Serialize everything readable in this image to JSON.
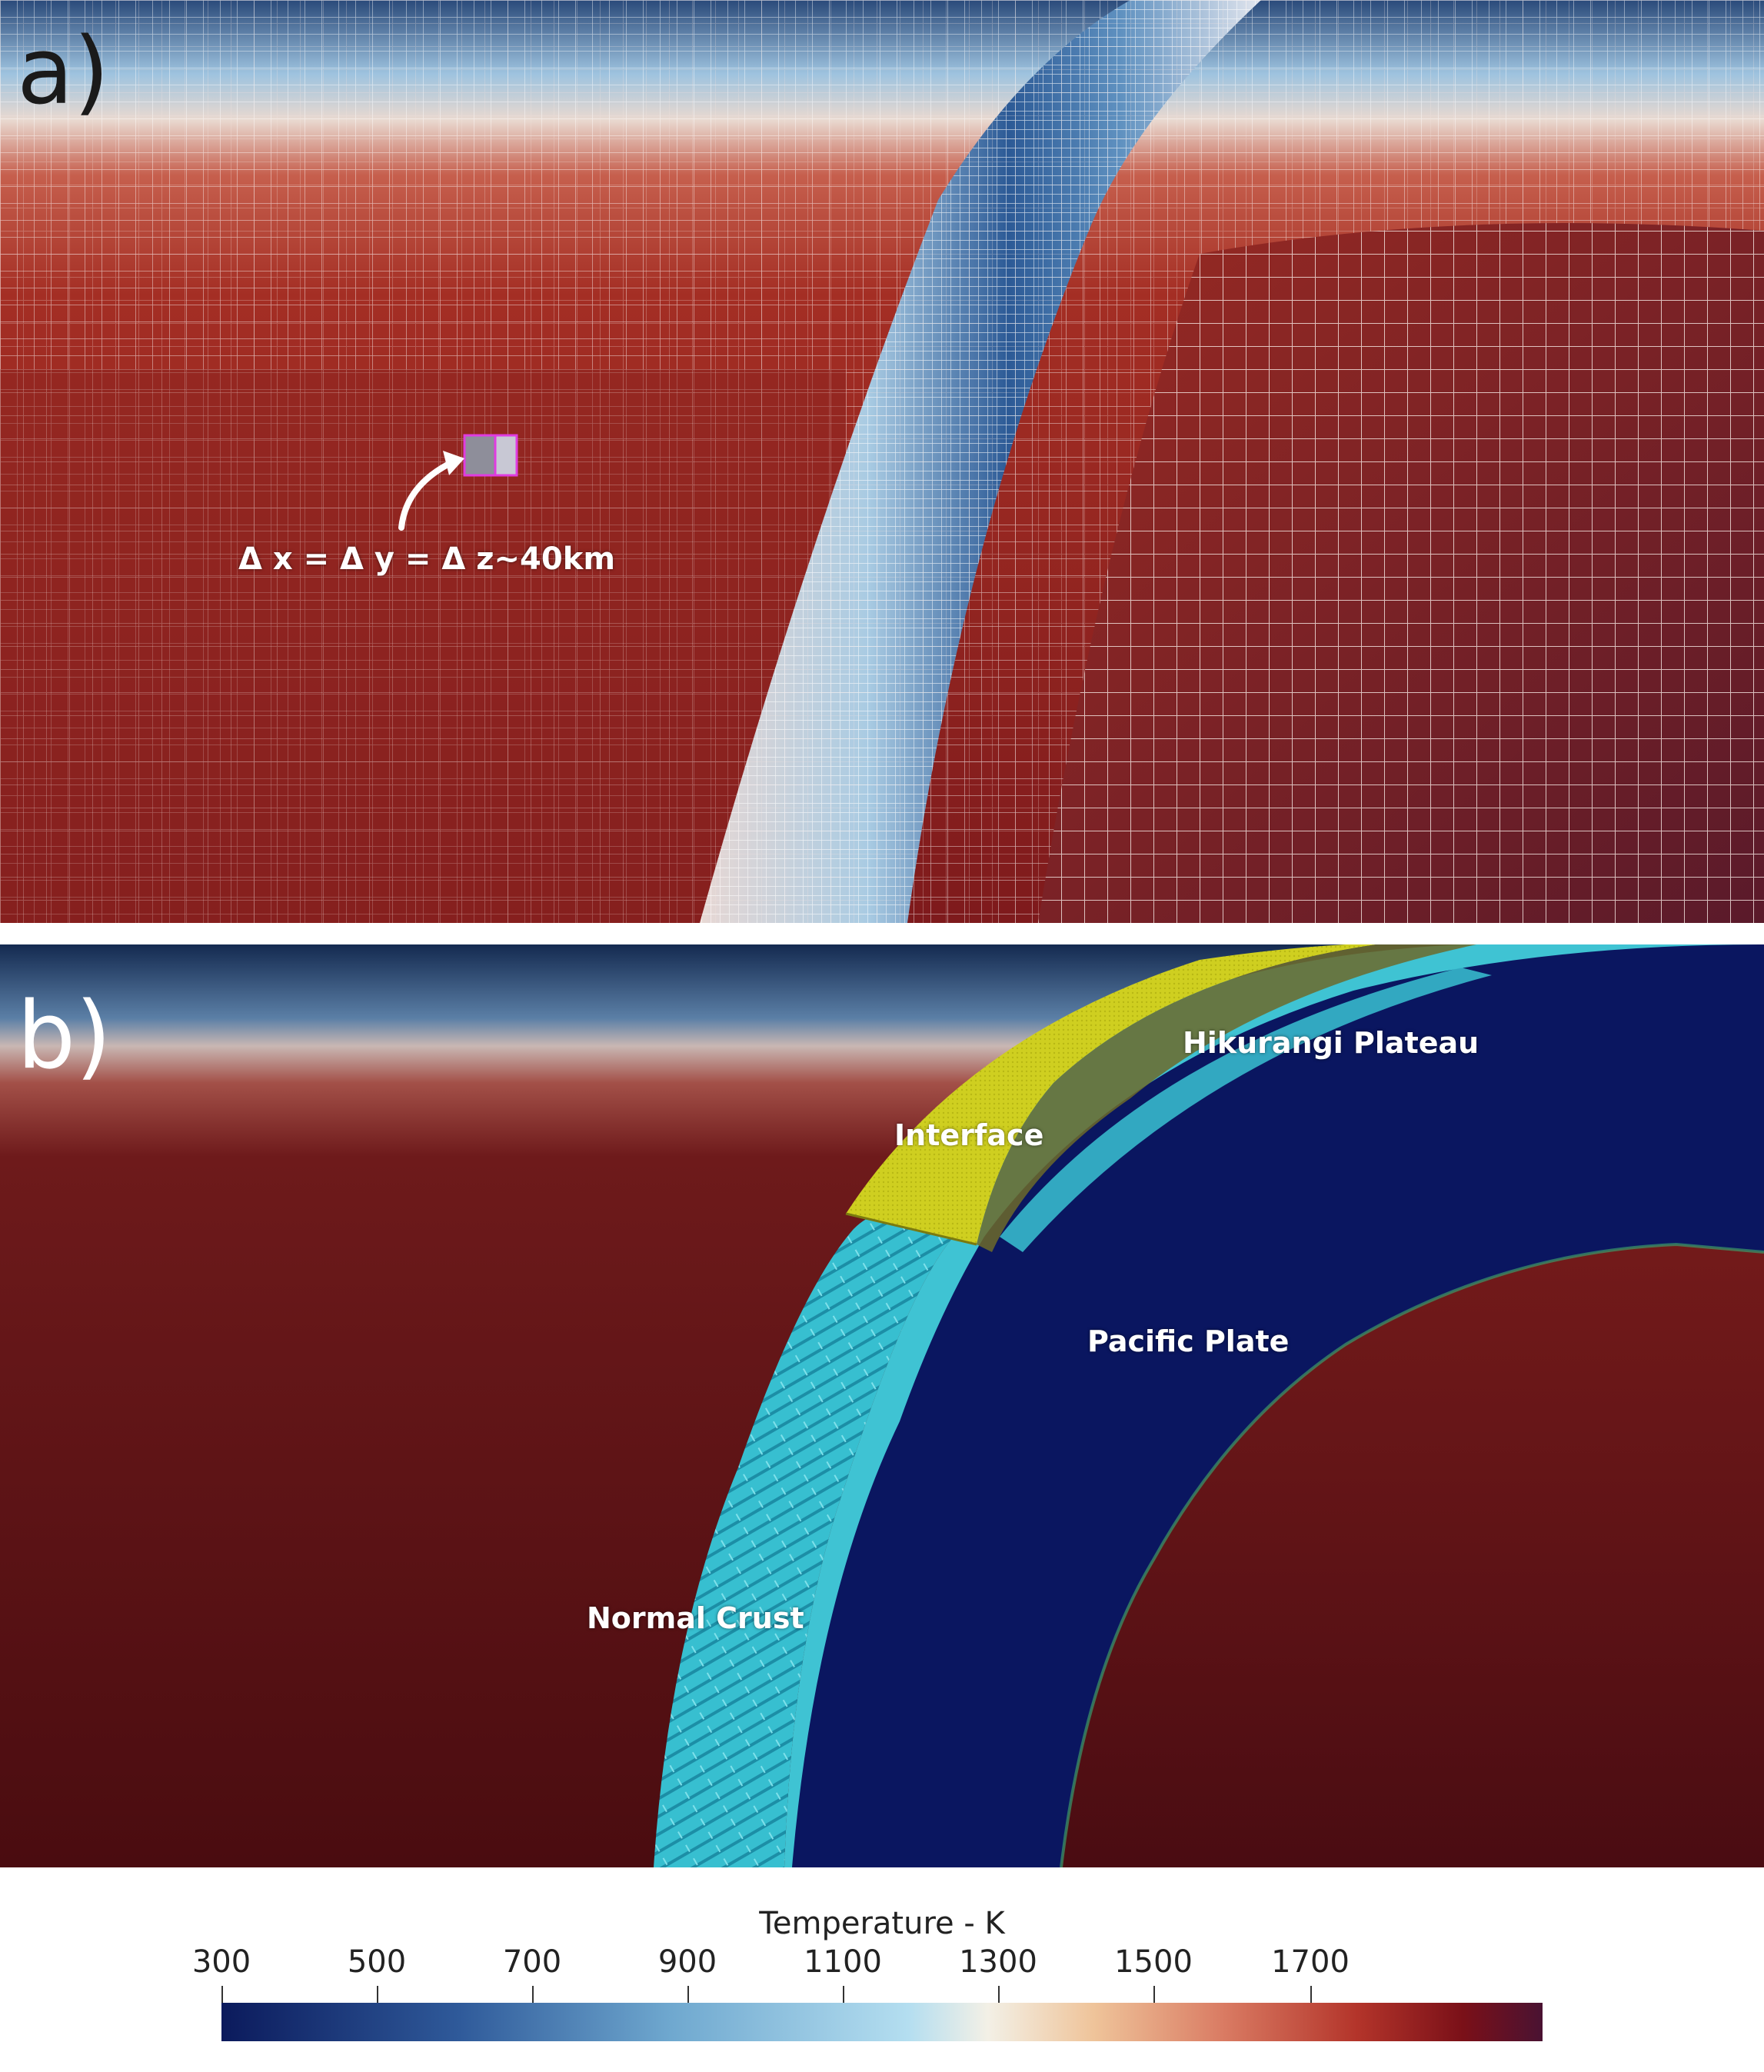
{
  "panel_a": {
    "letter": "a)",
    "cell_label": "Δ x = Δ y = Δ z~40km",
    "colors": {
      "mantle": "#9a2a22",
      "mantle_dark": "#5a1216",
      "slab_cold": "#1a3a78",
      "slab_mid": "#8fb8da",
      "grid_line": "#f2e6e2"
    }
  },
  "panel_b": {
    "letter": "b)",
    "labels": {
      "interface": "Interface",
      "hikurangi": "Hikurangi Plateau",
      "pacific": "Pacific Plate",
      "normal_crust": "Normal Crust"
    },
    "colors": {
      "interface": "#d2d21e",
      "crust": "#3cc6d6",
      "pacific": "#0a1660",
      "mantle": "#6a1418",
      "sky": "#1a2f55"
    }
  },
  "colorbar": {
    "title": "Temperature - K",
    "ticks": [
      "300",
      "500",
      "700",
      "900",
      "1100",
      "1300",
      "1500",
      "1700"
    ]
  }
}
